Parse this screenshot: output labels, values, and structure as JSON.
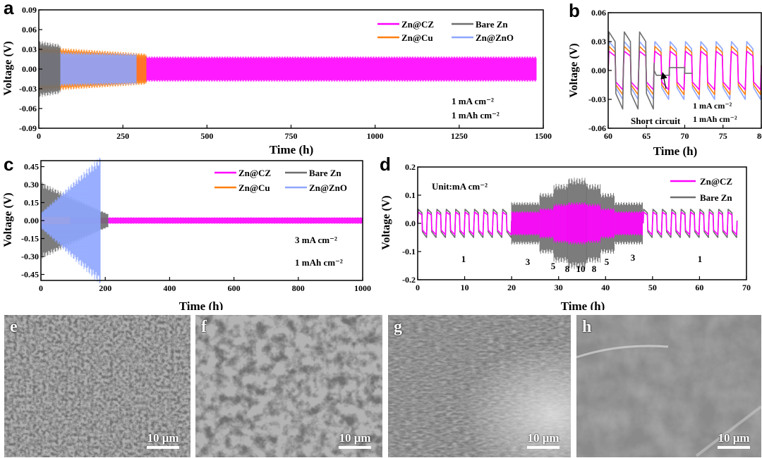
{
  "colors": {
    "cz": "#ff00ff",
    "bare": "#6e6e6e",
    "cu": "#ff7f0e",
    "zno": "#8ea6ff"
  },
  "panels": {
    "a": {
      "label": "a",
      "xlabel": "Time (h)",
      "ylabel": "Voltage (V)",
      "legend": [
        "Zn@CZ",
        "Bare Zn",
        "Zn@Cu",
        "Zn@ZnO"
      ],
      "notes": [
        "1 mA cm⁻²",
        "1 mAh cm⁻²"
      ]
    },
    "b": {
      "label": "b",
      "xlabel": "Time (h)",
      "ylabel": "Voltage (V)",
      "notes": [
        "1 mA cm⁻²",
        "1 mAh cm⁻²"
      ],
      "annotation": "Short circuit"
    },
    "c": {
      "label": "c",
      "xlabel": "Time (h)",
      "ylabel": "Voltage (V)",
      "legend": [
        "Zn@CZ",
        "Bare Zn",
        "Zn@Cu",
        "Zn@ZnO"
      ],
      "notes": [
        "3 mA cm⁻²",
        "1 mAh cm⁻²"
      ]
    },
    "d": {
      "label": "d",
      "xlabel": "Time (h)",
      "ylabel": "Voltage (V)",
      "legend": [
        "Zn@CZ",
        "Bare Zn"
      ],
      "unit_note": "Unit:mA cm⁻²",
      "rate_labels": [
        "1",
        "3",
        "5",
        "8",
        "10",
        "8",
        "5",
        "3",
        "1"
      ]
    },
    "e": {
      "label": "e",
      "scale": "10 μm"
    },
    "f": {
      "label": "f",
      "scale": "10 μm"
    },
    "g": {
      "label": "g",
      "scale": "10 μm"
    },
    "h": {
      "label": "h",
      "scale": "10 μm"
    }
  },
  "chart_data": [
    {
      "type": "line",
      "panel": "a",
      "xlabel": "Time (h)",
      "ylabel": "Voltage (V)",
      "xlim": [
        0,
        1500
      ],
      "ylim": [
        -0.09,
        0.09
      ],
      "xticks": [
        0,
        250,
        500,
        750,
        1000,
        1250,
        1500
      ],
      "yticks": [
        -0.09,
        -0.06,
        -0.03,
        0.0,
        0.03,
        0.06,
        0.09
      ],
      "series": [
        {
          "name": "Zn@CZ",
          "x": [
            0,
            1480
          ],
          "amplitude": [
            0.018,
            0.018
          ]
        },
        {
          "name": "Bare Zn",
          "x": [
            0,
            65
          ],
          "amplitude": [
            0.04,
            0.035
          ]
        },
        {
          "name": "Zn@Cu",
          "x": [
            0,
            320
          ],
          "amplitude": [
            0.032,
            0.022
          ]
        },
        {
          "name": "Zn@ZnO",
          "x": [
            0,
            290
          ],
          "amplitude": [
            0.025,
            0.022
          ]
        }
      ]
    },
    {
      "type": "line",
      "panel": "b",
      "xlabel": "Time (h)",
      "ylabel": "Voltage (V)",
      "xlim": [
        60,
        80
      ],
      "ylim": [
        -0.06,
        0.06
      ],
      "xticks": [
        60,
        65,
        70,
        75,
        80
      ],
      "yticks": [
        -0.06,
        -0.03,
        0.0,
        0.03,
        0.06
      ],
      "series": [
        {
          "name": "Bare Zn",
          "x": [
            60,
            66
          ],
          "amplitude": [
            0.04,
            0.04
          ],
          "short_circuit_after": 66
        },
        {
          "name": "Zn@CZ",
          "x": [
            60,
            80
          ],
          "amplitude": [
            0.02,
            0.02
          ]
        },
        {
          "name": "Zn@Cu",
          "x": [
            60,
            80
          ],
          "amplitude": [
            0.025,
            0.025
          ]
        },
        {
          "name": "Zn@ZnO",
          "x": [
            60,
            80
          ],
          "amplitude": [
            0.03,
            0.03
          ]
        }
      ]
    },
    {
      "type": "line",
      "panel": "c",
      "xlabel": "Time (h)",
      "ylabel": "Voltage (V)",
      "xlim": [
        0,
        1000
      ],
      "ylim": [
        -0.5,
        0.5
      ],
      "xticks": [
        0,
        200,
        400,
        600,
        800,
        1000
      ],
      "yticks": [
        -0.45,
        -0.3,
        -0.15,
        0.0,
        0.15,
        0.3,
        0.45
      ],
      "series": [
        {
          "name": "Zn@CZ",
          "x": [
            0,
            1000
          ],
          "amplitude": [
            0.025,
            0.025
          ]
        },
        {
          "name": "Bare Zn",
          "x": [
            0,
            210
          ],
          "amplitude": [
            0.3,
            0.05
          ]
        },
        {
          "name": "Zn@Cu",
          "x": [
            0,
            90
          ],
          "amplitude": [
            0.03,
            0.03
          ]
        },
        {
          "name": "Zn@ZnO",
          "x": [
            0,
            185
          ],
          "amplitude": [
            0.06,
            0.5
          ]
        }
      ]
    },
    {
      "type": "line",
      "panel": "d",
      "xlabel": "Time (h)",
      "ylabel": "Voltage (V)",
      "xlim": [
        0,
        70
      ],
      "ylim": [
        -0.2,
        0.2
      ],
      "xticks": [
        0,
        10,
        20,
        30,
        40,
        50,
        60,
        70
      ],
      "yticks": [
        -0.2,
        -0.1,
        0.0,
        0.1,
        0.2
      ],
      "segments": [
        {
          "rate": 1,
          "x": [
            0,
            20
          ],
          "cz": 0.04,
          "bare": 0.05
        },
        {
          "rate": 3,
          "x": [
            20,
            26
          ],
          "cz": 0.04,
          "bare": 0.07
        },
        {
          "rate": 5,
          "x": [
            26,
            29
          ],
          "cz": 0.05,
          "bare": 0.1
        },
        {
          "rate": 8,
          "x": [
            29,
            32
          ],
          "cz": 0.065,
          "bare": 0.13
        },
        {
          "rate": 10,
          "x": [
            32,
            36
          ],
          "cz": 0.07,
          "bare": 0.15
        },
        {
          "rate": 8,
          "x": [
            36,
            39
          ],
          "cz": 0.065,
          "bare": 0.13
        },
        {
          "rate": 5,
          "x": [
            39,
            42
          ],
          "cz": 0.05,
          "bare": 0.1
        },
        {
          "rate": 3,
          "x": [
            42,
            48
          ],
          "cz": 0.04,
          "bare": 0.07
        },
        {
          "rate": 1,
          "x": [
            48,
            68
          ],
          "cz": 0.04,
          "bare": 0.05
        }
      ]
    }
  ]
}
